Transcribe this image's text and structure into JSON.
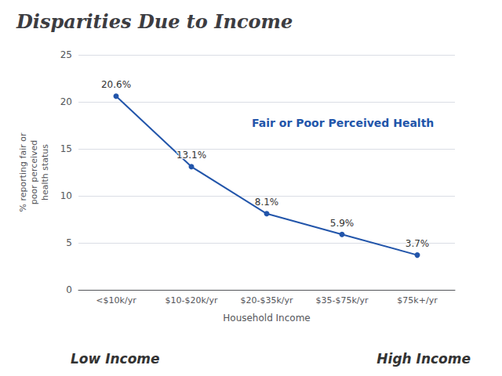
{
  "chart_data": {
    "type": "line",
    "title": "Disparities Due to Income",
    "categories": [
      "<$10k/yr",
      "$10-$20k/yr",
      "$20-$35k/yr",
      "$35-$75k/yr",
      "$75k+/yr"
    ],
    "values": [
      20.6,
      13.1,
      8.1,
      5.9,
      3.7
    ],
    "value_labels": [
      "20.6%",
      "13.1%",
      "8.1%",
      "5.9%",
      "3.7%"
    ],
    "data_labels": true,
    "color": "#2255aa",
    "marker": "circle",
    "xlabel": "Household Income",
    "ylabel": "% reporting fair or\npoor perceived\nhealth status",
    "ylim": [
      0,
      25
    ],
    "yticks": [
      0,
      5,
      10,
      15,
      20,
      25
    ],
    "grid": true,
    "annotations": [
      "Fair or Poor Perceived Health",
      "Low Income",
      "High Income"
    ]
  }
}
